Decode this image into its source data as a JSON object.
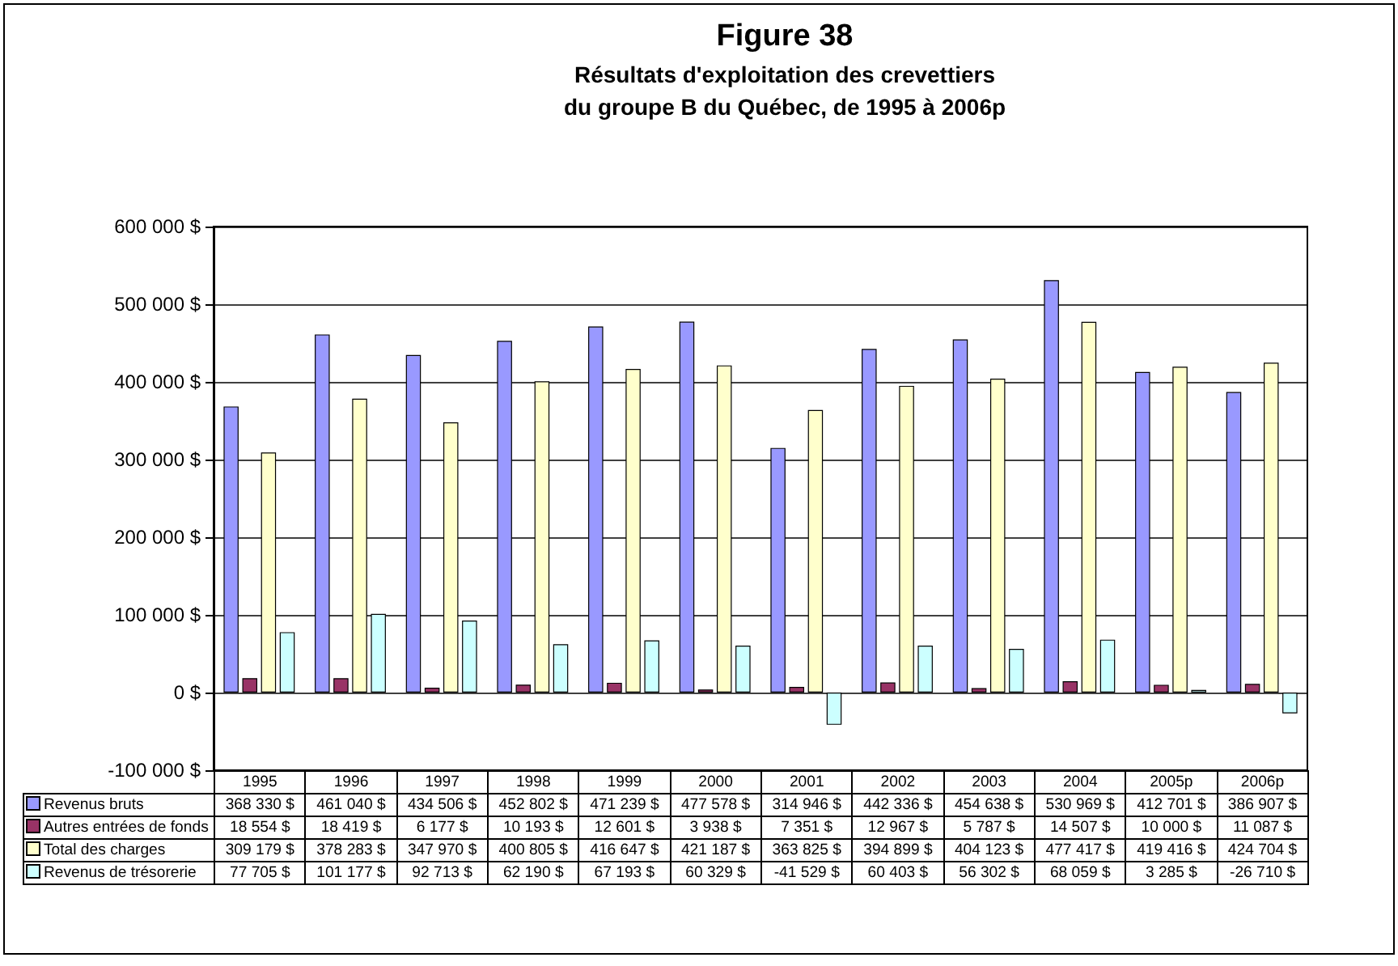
{
  "chart_data": {
    "type": "bar",
    "title": "Figure 38",
    "subtitle": "Résultats d'exploitation des crevettiers\ndu groupe B du Québec, de 1995 à 2006p",
    "categories": [
      "1995",
      "1996",
      "1997",
      "1998",
      "1999",
      "2000",
      "2001",
      "2002",
      "2003",
      "2004",
      "2005p",
      "2006p"
    ],
    "series": [
      {
        "name": "Revenus bruts",
        "color": "#9999ff",
        "values": [
          368330,
          461040,
          434506,
          452802,
          471239,
          477578,
          314946,
          442336,
          454638,
          530969,
          412701,
          386907
        ],
        "value_labels": [
          "368 330 $",
          "461 040 $",
          "434 506 $",
          "452 802 $",
          "471 239 $",
          "477 578 $",
          "314 946 $",
          "442 336 $",
          "454 638 $",
          "530 969 $",
          "412 701 $",
          "386 907 $"
        ]
      },
      {
        "name": "Autres entrées de fonds",
        "color": "#993366",
        "values": [
          18554,
          18419,
          6177,
          10193,
          12601,
          3938,
          7351,
          12967,
          5787,
          14507,
          10000,
          11087
        ],
        "value_labels": [
          "18 554 $",
          "18 419 $",
          "6 177 $",
          "10 193 $",
          "12 601 $",
          "3 938 $",
          "7 351 $",
          "12 967 $",
          "5 787 $",
          "14 507 $",
          "10 000 $",
          "11 087 $"
        ]
      },
      {
        "name": "Total des charges",
        "color": "#ffffcc",
        "values": [
          309179,
          378283,
          347970,
          400805,
          416647,
          421187,
          363825,
          394899,
          404123,
          477417,
          419416,
          424704
        ],
        "value_labels": [
          "309 179 $",
          "378 283 $",
          "347 970 $",
          "400 805 $",
          "416 647 $",
          "421 187 $",
          "363 825 $",
          "394 899 $",
          "404 123 $",
          "477 417 $",
          "419 416 $",
          "424 704 $"
        ]
      },
      {
        "name": "Revenus de trésorerie",
        "color": "#ccffff",
        "values": [
          77705,
          101177,
          92713,
          62190,
          67193,
          60329,
          -41529,
          60403,
          56302,
          68059,
          3285,
          -26710
        ],
        "value_labels": [
          "77 705 $",
          "101 177 $",
          "92 713 $",
          "62 190 $",
          "67 193 $",
          "60 329 $",
          "-41 529 $",
          "60 403 $",
          "56 302 $",
          "68 059 $",
          "3 285 $",
          "-26 710 $"
        ]
      }
    ],
    "ylim": [
      -100000,
      600000
    ],
    "yticks": [
      {
        "value": -100000,
        "label": "-100 000 $"
      },
      {
        "value": 0,
        "label": "0 $"
      },
      {
        "value": 100000,
        "label": "100 000 $"
      },
      {
        "value": 200000,
        "label": "200 000 $"
      },
      {
        "value": 300000,
        "label": "300 000 $"
      },
      {
        "value": 400000,
        "label": "400 000 $"
      },
      {
        "value": 500000,
        "label": "500 000 $"
      },
      {
        "value": 600000,
        "label": "600 000 $"
      }
    ],
    "grid": "y",
    "legend": "bottom left"
  }
}
